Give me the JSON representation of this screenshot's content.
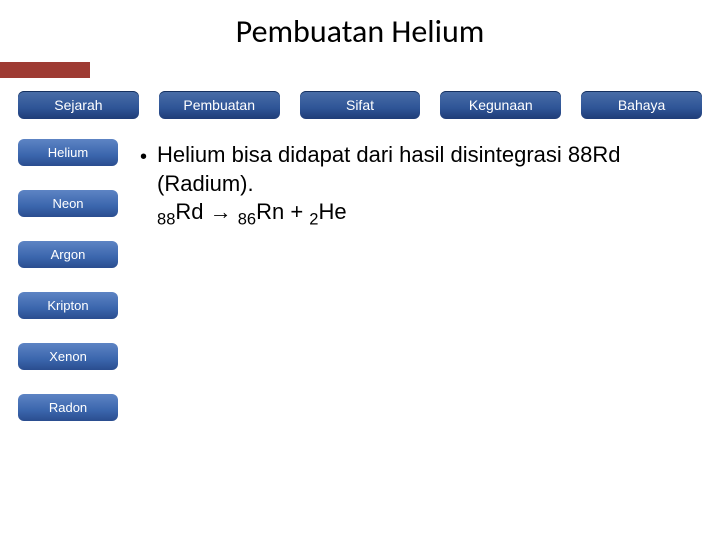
{
  "title": "Pembuatan Helium",
  "accent_color": "#9e3b33",
  "tab_gradient": [
    "#4a6ea8",
    "#1f3c77"
  ],
  "sidebar_gradient": [
    "#5d84c4",
    "#2a4d8f"
  ],
  "tabs": [
    {
      "label": "Sejarah"
    },
    {
      "label": "Pembuatan"
    },
    {
      "label": "Sifat"
    },
    {
      "label": "Kegunaan"
    },
    {
      "label": "Bahaya"
    }
  ],
  "sidebar": [
    {
      "label": "Helium"
    },
    {
      "label": "Neon"
    },
    {
      "label": "Argon"
    },
    {
      "label": "Kripton"
    },
    {
      "label": "Xenon"
    },
    {
      "label": "Radon"
    }
  ],
  "content": {
    "line1": "Helium bisa didapat dari hasil disintegrasi 88Rd (Radium).",
    "eq_sub1": "88",
    "eq_t1": "Rd → ",
    "eq_sub2": "86",
    "eq_t2": "Rn + ",
    "eq_sub3": "2",
    "eq_t3": "He"
  }
}
